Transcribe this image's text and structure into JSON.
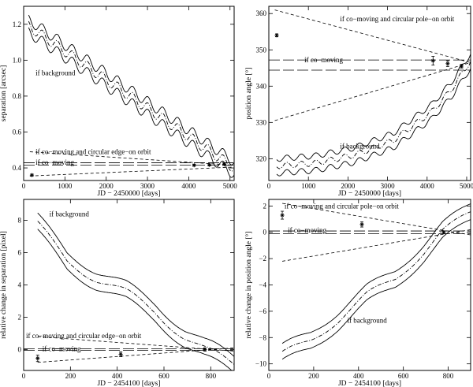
{
  "chart_data": [
    {
      "id": "panel-a",
      "type": "line",
      "xlabel": "JD − 2450000 [days]",
      "ylabel": "separation [arcsec]",
      "xlim": [
        0,
        5100
      ],
      "ylim": [
        0.33,
        1.3
      ],
      "xticks": [
        0,
        1000,
        2000,
        3000,
        4000,
        5000
      ],
      "yticks": [
        0.4,
        0.6,
        0.8,
        1.0,
        1.2
      ],
      "yfmt": 1,
      "grid": false,
      "annotations": [
        {
          "text": "if background",
          "x": 290,
          "y": 0.93
        },
        {
          "text": "if co−moving and circular edge−on orbit",
          "x": 290,
          "y": 0.49
        },
        {
          "text": "if co−moving",
          "x": 290,
          "y": 0.43
        }
      ],
      "background": {
        "x": [
          120,
          5100
        ],
        "y": [
          1.19,
          0.4
        ],
        "amp": 0.03,
        "period": 365,
        "band": 0.035
      },
      "edgeon": {
        "x": [
          150,
          5100
        ],
        "y_upper": [
          0.49,
          0.415
        ],
        "y_lower": [
          0.355,
          0.405
        ]
      },
      "comoving": {
        "x": [
          0,
          5100
        ],
        "y_center": 0.422,
        "gap": 0.007
      },
      "points": [
        {
          "x": 200,
          "y": 0.36,
          "err": 0.005
        },
        {
          "x": 4130,
          "y": 0.415,
          "err": 0.005
        },
        {
          "x": 4500,
          "y": 0.417,
          "err": 0.005
        },
        {
          "x": 4860,
          "y": 0.42,
          "err": 0.005
        }
      ]
    },
    {
      "id": "panel-b",
      "type": "line",
      "xlabel": "JD − 2450000 [days]",
      "ylabel": "position angle [°]",
      "xlim": [
        0,
        5100
      ],
      "ylim": [
        314,
        362
      ],
      "xticks": [
        0,
        1000,
        2000,
        3000,
        4000,
        5000
      ],
      "yticks": [
        320,
        330,
        340,
        350,
        360
      ],
      "yfmt": 0,
      "grid": false,
      "annotations": [
        {
          "text": "if co−moving and circular pole−on orbit",
          "x": 1800,
          "y": 358.5
        },
        {
          "text": "if co−moving",
          "x": 900,
          "y": 347.2
        },
        {
          "text": "if background",
          "x": 1800,
          "y": 323.5
        }
      ],
      "background": {
        "x": [
          200,
          5100
        ],
        "poly": [
          [
            0,
            318.0
          ],
          [
            0.2,
            318.8
          ],
          [
            0.4,
            321.0
          ],
          [
            0.6,
            325.0
          ],
          [
            0.8,
            333.0
          ],
          [
            0.9,
            339.0
          ],
          [
            1.0,
            347.0
          ]
        ],
        "amp": 0.8,
        "period": 365,
        "band": 2.0
      },
      "poleon": {
        "x": [
          150,
          5100
        ],
        "y_upper": [
          361,
          346.5
        ],
        "y_lower": [
          330.5,
          346.5
        ]
      },
      "comoving": {
        "x": [
          0,
          5100
        ],
        "y_center": 345.8,
        "gap": 1.4
      },
      "points": [
        {
          "x": 200,
          "y": 354,
          "err": 0.4
        },
        {
          "x": 4150,
          "y": 347,
          "err": 1.2
        },
        {
          "x": 4520,
          "y": 346.2,
          "err": 0.8
        },
        {
          "x": 4870,
          "y": 345.5,
          "err": 0.5
        }
      ]
    },
    {
      "id": "panel-c",
      "type": "line",
      "xlabel": "JD − 2454100 [days]",
      "ylabel": "relative change in separation [pixel]",
      "xlim": [
        0,
        900
      ],
      "ylim": [
        -1.3,
        9.3
      ],
      "xticks": [
        0,
        200,
        400,
        600,
        800
      ],
      "yticks": [
        0,
        2,
        4,
        6,
        8
      ],
      "yfmt": 0,
      "grid": false,
      "annotations": [
        {
          "text": "if background",
          "x": 110,
          "y": 8.4
        },
        {
          "text": "if co−moving and circular edge−on orbit",
          "x": 10,
          "y": 0.85
        },
        {
          "text": "if co−moving",
          "x": 80,
          "y": 0.05
        }
      ],
      "background": {
        "x": [
          60,
          900
        ],
        "poly": [
          [
            0,
            7.7
          ],
          [
            0.15,
            5.5
          ],
          [
            0.3,
            4.4
          ],
          [
            0.45,
            3.5
          ],
          [
            0.6,
            2.3
          ],
          [
            0.75,
            0.8
          ],
          [
            0.85,
            0.0
          ],
          [
            1.0,
            -1.0
          ]
        ],
        "amp": 0.3,
        "period": 365,
        "band": 0.5
      },
      "edgeon": {
        "x": [
          60,
          900
        ],
        "y_upper": [
          0.8,
          -0.1
        ],
        "y_lower": [
          -0.8,
          0.1
        ]
      },
      "comoving": {
        "x": [
          0,
          900
        ],
        "y_center": 0.0,
        "gap": 0.05
      },
      "points": [
        {
          "x": 60,
          "y": -0.55,
          "err": 0.2
        },
        {
          "x": 415,
          "y": -0.3,
          "err": 0.15
        },
        {
          "x": 775,
          "y": 0.0,
          "err": 0.1
        }
      ]
    },
    {
      "id": "panel-d",
      "type": "line",
      "xlabel": "JD − 2454100 [days]",
      "ylabel": "relative change in position angle [°]",
      "xlim": [
        0,
        900
      ],
      "ylim": [
        -10.5,
        2.5
      ],
      "xticks": [
        0,
        200,
        400,
        600,
        800
      ],
      "yticks": [
        -10,
        -8,
        -6,
        -4,
        -2,
        0,
        2
      ],
      "yfmt": 0,
      "grid": false,
      "annotations": [
        {
          "text": "if co−moving and circular pole−on orbit",
          "x": 70,
          "y": 2.0
        },
        {
          "text": "if co−moving",
          "x": 85,
          "y": 0.15
        },
        {
          "text": "if background",
          "x": 350,
          "y": -6.7
        }
      ],
      "background": {
        "x": [
          60,
          900
        ],
        "poly": [
          [
            0,
            -9.3
          ],
          [
            0.15,
            -8.2
          ],
          [
            0.3,
            -6.6
          ],
          [
            0.45,
            -4.8
          ],
          [
            0.6,
            -3.5
          ],
          [
            0.75,
            -1.5
          ],
          [
            0.85,
            0.0
          ],
          [
            1.0,
            1.5
          ]
        ],
        "amp": 0.3,
        "period": 365,
        "band": 0.6
      },
      "poleon": {
        "x": [
          60,
          900
        ],
        "y_upper": [
          2.2,
          -0.2
        ],
        "y_lower": [
          -2.2,
          0.2
        ]
      },
      "comoving": {
        "x": [
          0,
          900
        ],
        "y_center": 0.0,
        "gap": 0.1
      },
      "points": [
        {
          "x": 60,
          "y": 1.3,
          "err": 0.3
        },
        {
          "x": 415,
          "y": 0.6,
          "err": 0.2
        },
        {
          "x": 780,
          "y": 0.0,
          "err": 0.1
        }
      ]
    }
  ]
}
